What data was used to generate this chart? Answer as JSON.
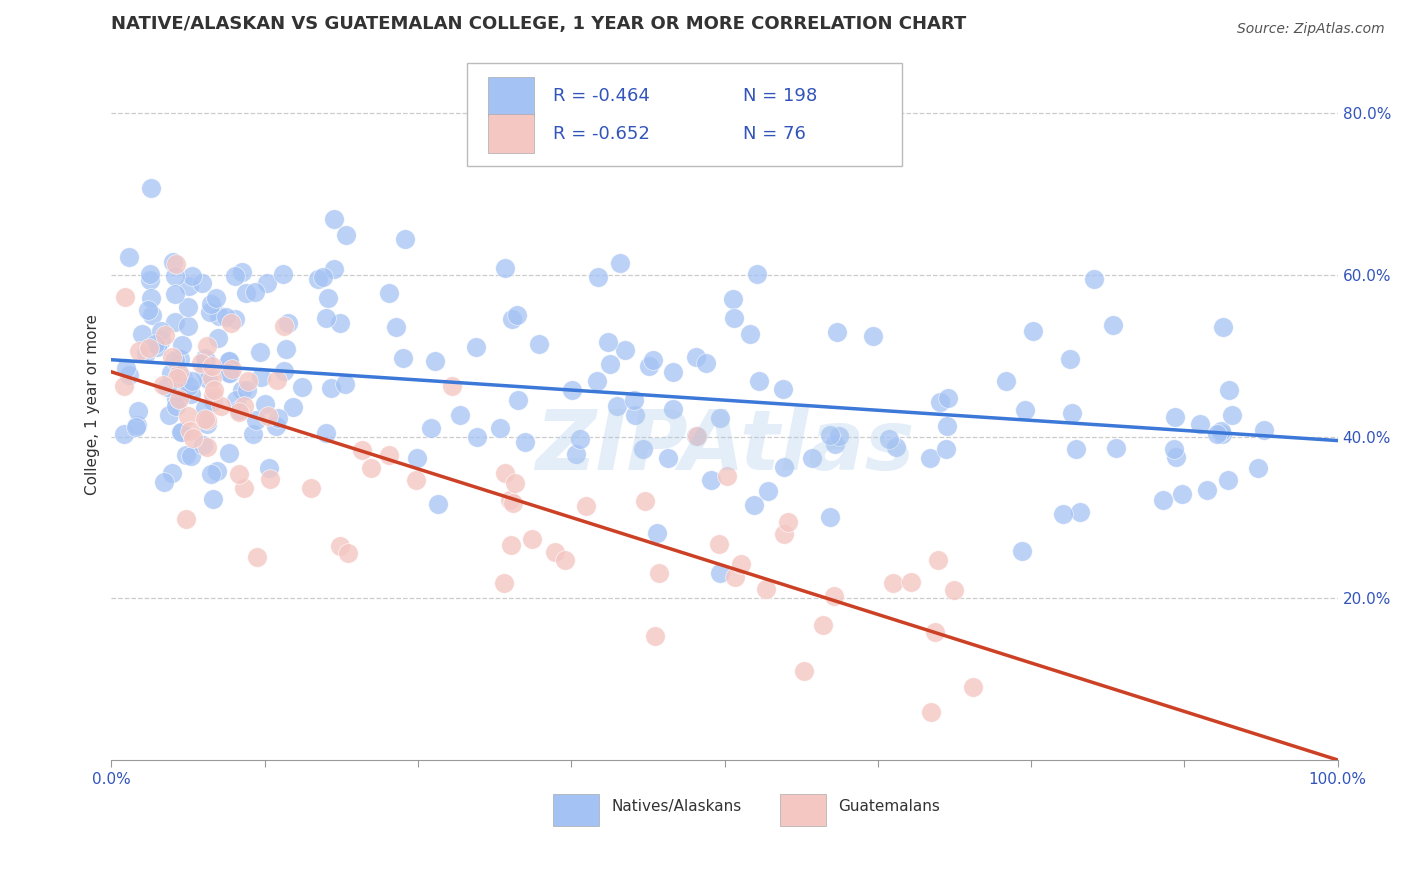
{
  "title": "NATIVE/ALASKAN VS GUATEMALAN COLLEGE, 1 YEAR OR MORE CORRELATION CHART",
  "source_text": "Source: ZipAtlas.com",
  "ylabel": "College, 1 year or more",
  "watermark": "ZIPAtlas",
  "legend_blue_label": "Natives/Alaskans",
  "legend_pink_label": "Guatemalans",
  "blue_R": -0.464,
  "blue_N": 198,
  "pink_R": -0.652,
  "pink_N": 76,
  "blue_color": "#a4c2f4",
  "pink_color": "#f4c7c3",
  "blue_line_color": "#3c78d8",
  "pink_line_color": "#cc4125",
  "xlim": [
    0.0,
    1.0
  ],
  "ylim": [
    0.0,
    0.88
  ],
  "right_yticks": [
    0.2,
    0.4,
    0.6,
    0.8
  ],
  "right_yticklabels": [
    "20.0%",
    "40.0%",
    "60.0%",
    "80.0%"
  ],
  "xticks": [
    0.0,
    0.125,
    0.25,
    0.375,
    0.5,
    0.625,
    0.75,
    0.875,
    1.0
  ],
  "xticklabels": [
    "0.0%",
    "",
    "",
    "",
    "",
    "",
    "",
    "",
    "100.0%"
  ],
  "blue_trend_x0": 0.0,
  "blue_trend_y0": 0.495,
  "blue_trend_x1": 1.0,
  "blue_trend_y1": 0.395,
  "pink_trend_x0": 0.0,
  "pink_trend_y0": 0.48,
  "pink_trend_x1": 1.0,
  "pink_trend_y1": 0.0,
  "title_fontsize": 13,
  "label_fontsize": 11,
  "tick_fontsize": 11,
  "legend_text_color": "#3355bb",
  "background_color": "#ffffff",
  "grid_color": "#cccccc"
}
